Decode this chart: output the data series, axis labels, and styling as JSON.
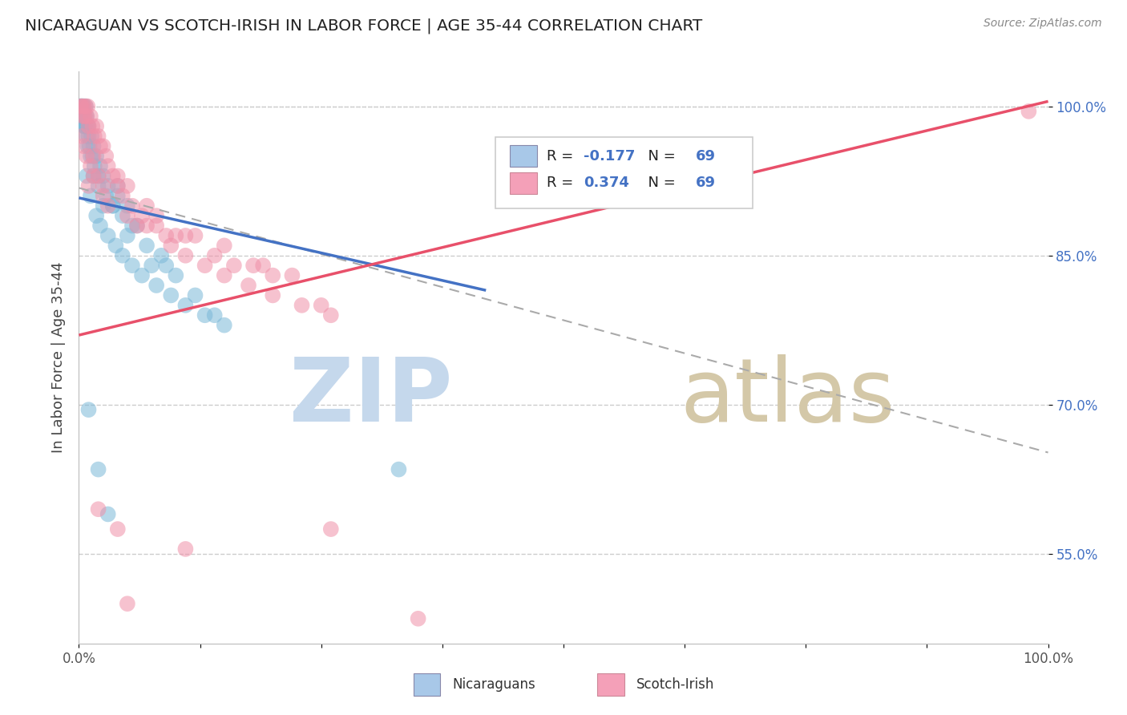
{
  "title": "NICARAGUAN VS SCOTCH-IRISH IN LABOR FORCE | AGE 35-44 CORRELATION CHART",
  "source": "Source: ZipAtlas.com",
  "ylabel": "In Labor Force | Age 35-44",
  "legend_colors_nic": "#a8c8e8",
  "legend_colors_si": "#f4a0b8",
  "color_nicaraguan": "#7ab8d8",
  "color_scotchirish": "#f090a8",
  "trendline_nicaraguan": "#4472c4",
  "trendline_scotchirish": "#e8506a",
  "dashed_line_color": "#aaaaaa",
  "R_nicaraguan": -0.177,
  "N_nicaraguan": 69,
  "R_scotchirish": 0.374,
  "N_scotchirish": 69,
  "xlim": [
    0.0,
    1.0
  ],
  "ylim": [
    0.46,
    1.035
  ],
  "yticks": [
    0.55,
    0.7,
    0.85,
    1.0
  ],
  "ytick_labels": [
    "55.0%",
    "70.0%",
    "85.0%",
    "100.0%"
  ],
  "watermark_zip_color": "#c5d8ec",
  "watermark_atlas_color": "#d4c8a8",
  "nic_blue_line_x": [
    0.0,
    0.42
  ],
  "nic_blue_line_y": [
    0.908,
    0.815
  ],
  "si_pink_line_x": [
    0.0,
    1.0
  ],
  "si_pink_line_y": [
    0.77,
    1.005
  ],
  "dash_line_x": [
    0.0,
    1.0
  ],
  "dash_line_y": [
    0.918,
    0.652
  ]
}
